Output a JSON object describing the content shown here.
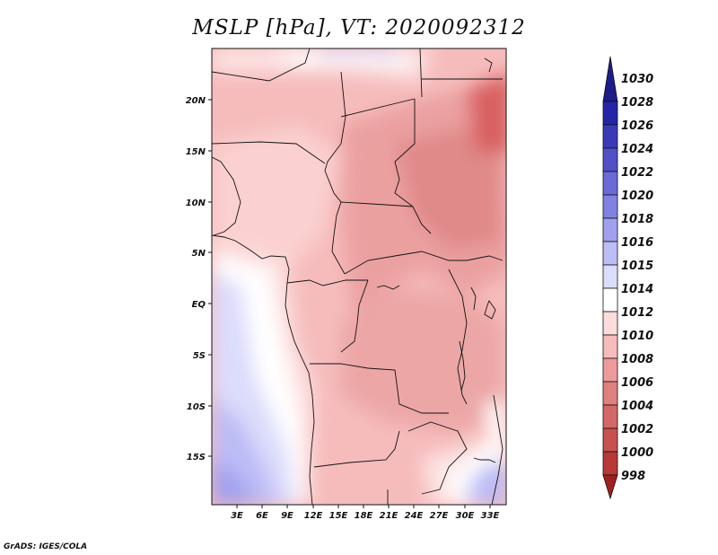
{
  "title": "MSLP [hPa], VT: 2020092312",
  "credit": "GrADS: IGES/COLA",
  "map": {
    "lon_labels": [
      "3E",
      "6E",
      "9E",
      "12E",
      "15E",
      "18E",
      "21E",
      "24E",
      "27E",
      "30E",
      "33E"
    ],
    "lat_labels": [
      "20N",
      "15N",
      "10N",
      "5N",
      "EQ",
      "5S",
      "10S",
      "15S"
    ],
    "lon_range": [
      0,
      35
    ],
    "lat_range": [
      -20,
      24.5
    ]
  },
  "colorbar": {
    "levels": [
      "1030",
      "1028",
      "1026",
      "1024",
      "1022",
      "1020",
      "1018",
      "1016",
      "1015",
      "1014",
      "1012",
      "1010",
      "1008",
      "1006",
      "1004",
      "1002",
      "1000",
      "998"
    ],
    "colors": [
      "#1c1c8a",
      "#2424a8",
      "#3a3ab8",
      "#5050c8",
      "#6a6ad8",
      "#8282e4",
      "#a0a0ee",
      "#bcbcf6",
      "#dcdcfc",
      "#ffffff",
      "#fcdcdc",
      "#f6bcbc",
      "#ee9a9a",
      "#e08080",
      "#d46868",
      "#c85050",
      "#b83838",
      "#a02020"
    ]
  }
}
